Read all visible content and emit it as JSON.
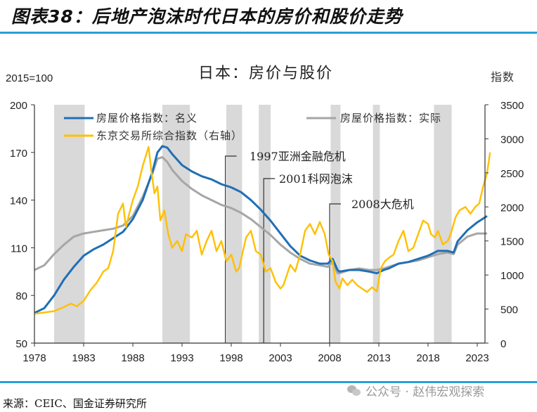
{
  "figure": {
    "title": "图表38：后地产泡沫时代日本的房价和股价走势",
    "source": "来源：CEIC、国金证券研究所",
    "watermark": "公众号 · 赵伟宏观探索"
  },
  "chart_data": {
    "type": "line",
    "title": "日本：房价与股价",
    "ylabel_left": "2015=100",
    "ylabel_right": "指数",
    "xlim": [
      1978,
      2024.5
    ],
    "ylim_left": [
      50,
      200
    ],
    "ylim_right": [
      0,
      3500
    ],
    "x_ticks": [
      "1978",
      "1983",
      "1988",
      "1993",
      "1998",
      "2003",
      "2008",
      "2013",
      "2018",
      "2023"
    ],
    "y_ticks_left": [
      "50",
      "80",
      "110",
      "140",
      "170",
      "200"
    ],
    "y_ticks_right": [
      "0",
      "500",
      "1000",
      "1500",
      "2000",
      "2500",
      "3000",
      "3500"
    ],
    "grid": false,
    "legend": {
      "placement": "top",
      "entries": [
        {
          "label": "房屋价格指数：名义",
          "color": "#1f6fb5"
        },
        {
          "label": "房屋价格指数：实际",
          "color": "#a6a6a6"
        },
        {
          "label": "东京交易所综合指数（右轴）",
          "color": "#ffc000"
        }
      ]
    },
    "shaded_periods": [
      [
        1980.0,
        1983.1
      ],
      [
        1991.0,
        1993.8
      ],
      [
        1997.5,
        1999.1
      ],
      [
        2000.8,
        2002.0
      ],
      [
        2008.1,
        2009.1
      ],
      [
        2012.4,
        2013.1
      ],
      [
        2018.6,
        2020.4
      ]
    ],
    "annotations": [
      {
        "label": "1997亚洲金融危机",
        "x": 1997.4
      },
      {
        "label": "2001科网泡沫",
        "x": 2001.3
      },
      {
        "label": "2008大危机",
        "x": 2008.0
      }
    ],
    "series": [
      {
        "name": "房屋价格指数：名义",
        "axis": "left",
        "color": "#1f6fb5",
        "x": [
          1978,
          1979,
          1980,
          1981,
          1982,
          1983,
          1984,
          1985,
          1986,
          1987,
          1988,
          1989,
          1990,
          1990.5,
          1991,
          1991.5,
          1992,
          1993,
          1994,
          1995,
          1996,
          1997,
          1998,
          1999,
          2000,
          2001,
          2002,
          2003,
          2004,
          2005,
          2006,
          2007,
          2007.8,
          2008.3,
          2008.8,
          2009,
          2010,
          2011,
          2012,
          2012.8,
          2013.5,
          2014,
          2015,
          2016,
          2017,
          2018,
          2019,
          2020,
          2020.6,
          2021,
          2022,
          2023,
          2024
        ],
        "values": [
          69,
          72,
          80,
          90,
          98,
          105,
          109,
          112,
          116,
          120,
          128,
          140,
          158,
          170,
          174,
          173,
          169,
          162,
          158,
          155,
          153,
          150,
          148,
          145,
          140,
          134,
          127,
          119,
          111,
          105,
          102,
          100,
          100,
          103,
          96,
          95,
          96,
          96,
          95,
          94,
          96,
          97,
          100,
          101,
          103,
          105,
          108,
          108,
          107,
          114,
          121,
          126,
          130
        ]
      },
      {
        "name": "房屋价格指数：实际",
        "axis": "left",
        "color": "#a6a6a6",
        "x": [
          1978,
          1979,
          1980,
          1981,
          1982,
          1983,
          1984,
          1985,
          1986,
          1987,
          1988,
          1989,
          1990,
          1990.5,
          1991,
          1991.5,
          1992,
          1993,
          1994,
          1995,
          1996,
          1997,
          1998,
          1999,
          2000,
          2001,
          2002,
          2003,
          2004,
          2005,
          2006,
          2007,
          2007.8,
          2008.3,
          2008.8,
          2009,
          2010,
          2011,
          2012,
          2012.8,
          2013.5,
          2014,
          2015,
          2016,
          2017,
          2018,
          2019,
          2020,
          2020.6,
          2021,
          2022,
          2023,
          2024
        ],
        "values": [
          96,
          99,
          106,
          112,
          117,
          119,
          120,
          121,
          122,
          124,
          130,
          142,
          157,
          166,
          167,
          164,
          159,
          152,
          147,
          143,
          140,
          137,
          135,
          132,
          128,
          123,
          118,
          112,
          107,
          103,
          100,
          99,
          98,
          101,
          94,
          94,
          96,
          97,
          96,
          96,
          97,
          98,
          100,
          101,
          102,
          104,
          106,
          107,
          106,
          112,
          117,
          119,
          119
        ]
      },
      {
        "name": "东京交易所综合指数（右轴）",
        "axis": "right",
        "color": "#ffc000",
        "x": [
          1978,
          1979,
          1980,
          1981,
          1981.7,
          1982.3,
          1983,
          1983.7,
          1984.3,
          1985,
          1985.5,
          1986,
          1986.5,
          1987,
          1987.3,
          1987.6,
          1988,
          1988.5,
          1989,
          1989.6,
          1989.9,
          1990.2,
          1990.5,
          1990.8,
          1991.2,
          1991.6,
          1992,
          1992.5,
          1993,
          1993.4,
          1994,
          1994.5,
          1995,
          1995.5,
          1996,
          1996.5,
          1997,
          1997.5,
          1998,
          1998.5,
          1998.8,
          1999.5,
          2000,
          2000.5,
          2001,
          2001.5,
          2002,
          2002.5,
          2003,
          2003.3,
          2004,
          2004.5,
          2005,
          2005.5,
          2006,
          2006.5,
          2007,
          2007.5,
          2007.9,
          2008.3,
          2008.6,
          2009,
          2009.3,
          2009.8,
          2010.3,
          2010.8,
          2011.3,
          2011.8,
          2012.3,
          2012.8,
          2013.2,
          2013.6,
          2014,
          2014.5,
          2015,
          2015.5,
          2016,
          2016.5,
          2017,
          2017.5,
          2018,
          2018.3,
          2018.7,
          2019,
          2019.5,
          2020,
          2020.3,
          2020.8,
          2021.2,
          2021.8,
          2022.3,
          2022.8,
          2023.2,
          2023.6,
          2024,
          2024.3
        ],
        "values": [
          430,
          450,
          470,
          530,
          580,
          540,
          620,
          780,
          880,
          1050,
          1100,
          1350,
          1900,
          2050,
          1700,
          1880,
          2100,
          2300,
          2600,
          2881,
          2500,
          2200,
          2300,
          1800,
          1950,
          1600,
          1400,
          1500,
          1350,
          1600,
          1550,
          1650,
          1300,
          1500,
          1650,
          1350,
          1500,
          1200,
          1300,
          1050,
          1100,
          1550,
          1650,
          1350,
          1300,
          1050,
          1100,
          900,
          800,
          850,
          1150,
          1050,
          1300,
          1650,
          1750,
          1600,
          1780,
          1600,
          1300,
          1200,
          900,
          800,
          950,
          850,
          930,
          850,
          800,
          750,
          820,
          760,
          1100,
          1200,
          1250,
          1300,
          1500,
          1650,
          1350,
          1400,
          1600,
          1800,
          1750,
          1600,
          1550,
          1650,
          1450,
          1500,
          1600,
          1850,
          1950,
          2000,
          1900,
          2000,
          2050,
          2300,
          2500,
          2800
        ]
      }
    ]
  }
}
